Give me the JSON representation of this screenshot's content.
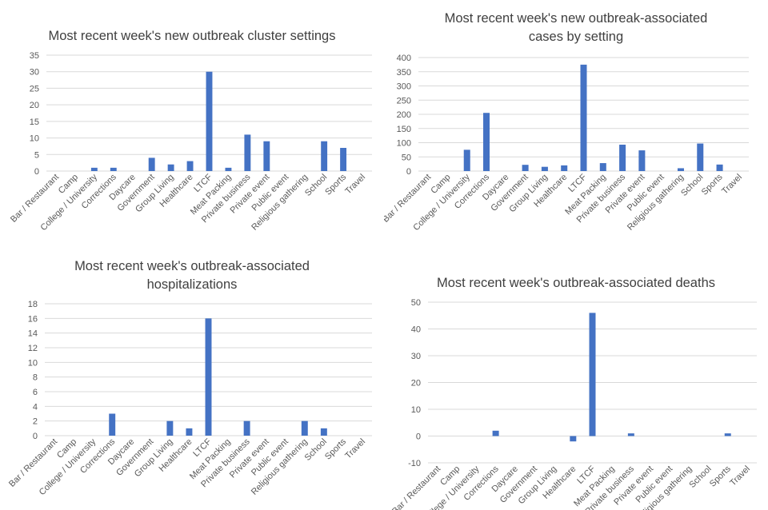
{
  "colors": {
    "bar": "#4472c4",
    "grid": "#d9d9d9",
    "text": "#595959",
    "title": "#404040"
  },
  "chart_data": [
    {
      "type": "bar",
      "title_lines": [
        "Most recent week's new outbreak cluster settings"
      ],
      "categories": [
        "Bar / Restaurant",
        "Camp",
        "College / University",
        "Corrections",
        "Daycare",
        "Government",
        "Group Living",
        "Healthcare",
        "LTCF",
        "Meat Packing",
        "Private business",
        "Private event",
        "Public event",
        "Religious gathering",
        "School",
        "Sports",
        "Travel"
      ],
      "values": [
        0,
        0,
        1,
        1,
        0,
        4,
        2,
        3,
        30,
        1,
        11,
        9,
        0,
        0,
        9,
        7,
        0
      ],
      "yticks": [
        "0",
        "5",
        "10",
        "15",
        "20",
        "25",
        "30",
        "35"
      ],
      "ylim": [
        0,
        35
      ],
      "grid": true,
      "legend": "none"
    },
    {
      "type": "bar",
      "title_lines": [
        "Most recent week's new outbreak-associated",
        "cases by setting"
      ],
      "categories": [
        "Bar / Restaurant",
        "Camp",
        "College / University",
        "Corrections",
        "Daycare",
        "Government",
        "Group Living",
        "Healthcare",
        "LTCF",
        "Meat Packing",
        "Private business",
        "Private event",
        "Public event",
        "Religious gathering",
        "School",
        "Sports",
        "Travel"
      ],
      "values": [
        0,
        0,
        75,
        205,
        0,
        22,
        15,
        20,
        375,
        28,
        93,
        73,
        0,
        10,
        97,
        23,
        0
      ],
      "yticks": [
        "0",
        "50",
        "100",
        "150",
        "200",
        "250",
        "300",
        "350",
        "400"
      ],
      "ylim": [
        0,
        400
      ],
      "grid": true,
      "legend": "none"
    },
    {
      "type": "bar",
      "title_lines": [
        "Most recent week's outbreak-associated",
        "hospitalizations"
      ],
      "categories": [
        "Bar / Restaurant",
        "Camp",
        "College / University",
        "Corrections",
        "Daycare",
        "Government",
        "Group Living",
        "Healthcare",
        "LTCF",
        "Meat Packing",
        "Private business",
        "Private event",
        "Public event",
        "Religious gathering",
        "School",
        "Sports",
        "Travel"
      ],
      "values": [
        0,
        0,
        0,
        3,
        0,
        0,
        2,
        1,
        16,
        0,
        2,
        0,
        0,
        2,
        1,
        0,
        0
      ],
      "yticks": [
        "0",
        "2",
        "4",
        "6",
        "8",
        "10",
        "12",
        "14",
        "16",
        "18"
      ],
      "ylim": [
        0,
        18
      ],
      "grid": true,
      "legend": "none"
    },
    {
      "type": "bar",
      "title_lines": [
        "Most recent week's outbreak-associated deaths"
      ],
      "categories": [
        "Bar / Restaurant",
        "Camp",
        "College / University",
        "Corrections",
        "Daycare",
        "Government",
        "Group Living",
        "Healthcare",
        "LTCF",
        "Meat Packing",
        "Private business",
        "Private event",
        "Public event",
        "Religious gathering",
        "School",
        "Sports",
        "Travel"
      ],
      "values": [
        0,
        0,
        0,
        2,
        0,
        0,
        0,
        -2,
        46,
        0,
        1,
        0,
        0,
        0,
        0,
        1,
        0
      ],
      "yticks": [
        "-10",
        "0",
        "10",
        "20",
        "30",
        "40",
        "50"
      ],
      "ylim": [
        -10,
        50
      ],
      "grid": true,
      "legend": "none"
    }
  ]
}
